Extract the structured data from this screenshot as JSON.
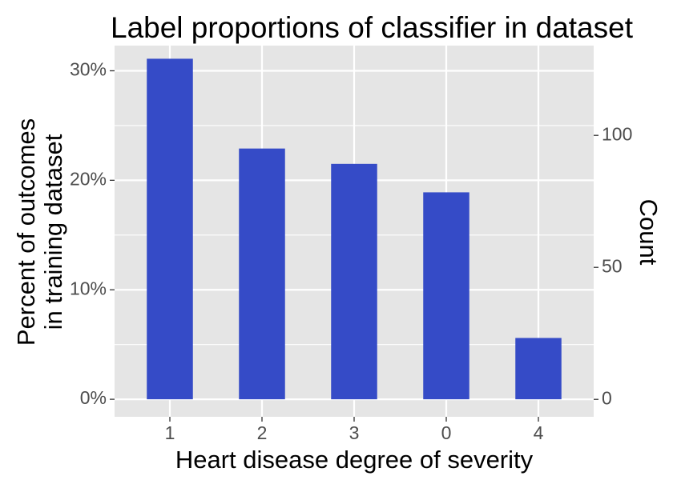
{
  "chart_data": {
    "type": "bar",
    "title": "Label proportions of classifier in dataset",
    "xlabel": "Heart disease degree of severity",
    "ylabel_lines": [
      "Percent of outcomes",
      "in training dataset"
    ],
    "ylabel_right": "Count",
    "categories": [
      "1",
      "2",
      "3",
      "0",
      "4"
    ],
    "series": [
      {
        "values": [
          31.1,
          22.9,
          21.5,
          18.9,
          5.6
        ]
      }
    ],
    "counts": [
      129,
      95,
      89,
      78,
      23
    ],
    "ylim": [
      -1.6,
      32.3
    ],
    "yticks": [
      0,
      10,
      20,
      30
    ],
    "ytick_labels": [
      "0%",
      "10%",
      "20%",
      "30%"
    ],
    "y2lim": [
      -6.6,
      134
    ],
    "y2ticks": [
      0,
      50,
      100
    ],
    "y2tick_labels": [
      "0",
      "50",
      "100"
    ],
    "grid": true,
    "legend": "none",
    "colors": {
      "bar": "#354BC7",
      "panel": "#E5E5E5",
      "grid": "#FFFFFF"
    }
  }
}
